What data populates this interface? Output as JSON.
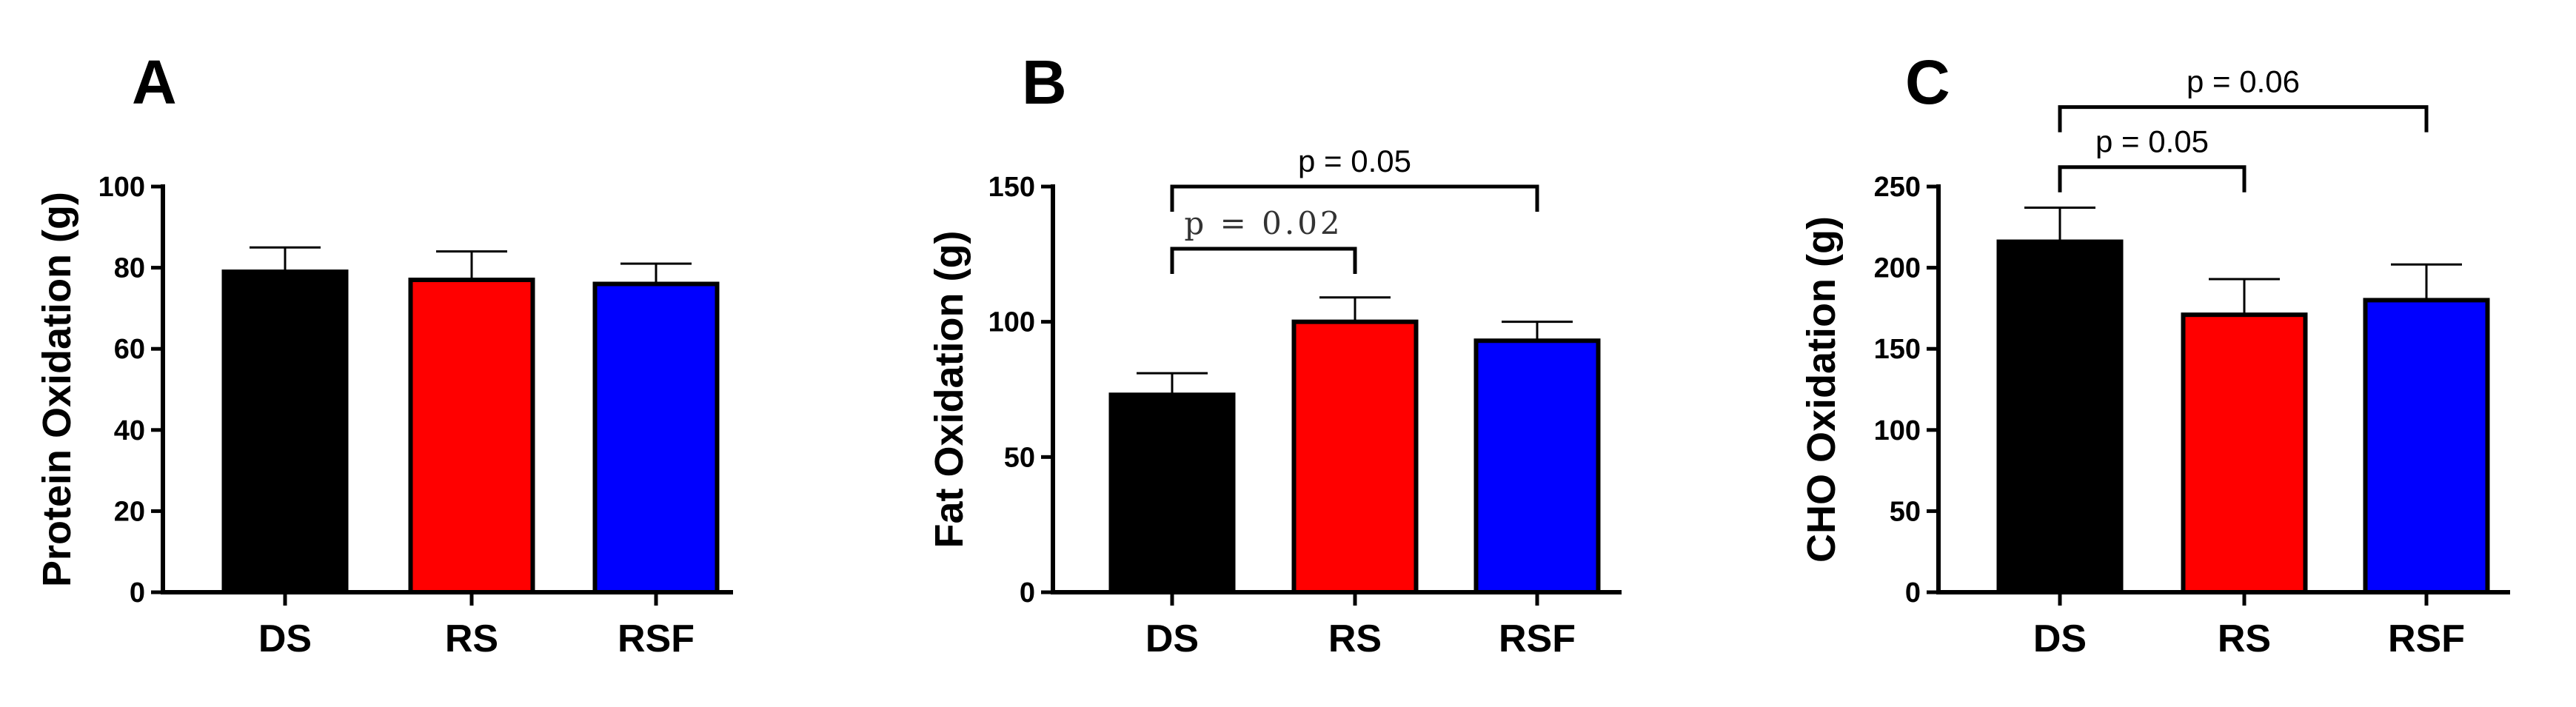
{
  "colors": {
    "DS": "#000000",
    "RS": "#ff0000",
    "RSF": "#0000ff"
  },
  "chart_data": [
    {
      "type": "bar",
      "panel": "A",
      "ylabel": "Protein Oxidation (g)",
      "categories": [
        "DS",
        "RS",
        "RSF"
      ],
      "values": [
        79,
        77,
        76
      ],
      "errors": [
        6,
        7,
        5
      ],
      "ylim": [
        0,
        100
      ],
      "yticks": [
        0,
        20,
        40,
        60,
        80,
        100
      ],
      "ytick_labels": [
        "0",
        "20",
        "40",
        "60",
        "80",
        "100"
      ],
      "comparisons": []
    },
    {
      "type": "bar",
      "panel": "B",
      "ylabel": "Fat Oxidation (g)",
      "categories": [
        "DS",
        "RS",
        "RSF"
      ],
      "values": [
        73,
        100,
        93
      ],
      "errors": [
        8,
        9,
        7
      ],
      "ylim": [
        0,
        150
      ],
      "yticks": [
        0,
        50,
        100,
        150
      ],
      "ytick_labels": [
        "0",
        "50",
        "100",
        "150"
      ],
      "comparisons": [
        {
          "from": 0,
          "to": 1,
          "label": "p = 0.02",
          "style": "serif",
          "y": 127
        },
        {
          "from": 0,
          "to": 2,
          "label": "p = 0.05",
          "style": "sans",
          "y": 150
        }
      ]
    },
    {
      "type": "bar",
      "panel": "C",
      "ylabel": "CHO Oxidation (g)",
      "categories": [
        "DS",
        "RS",
        "RSF"
      ],
      "values": [
        216,
        171,
        180
      ],
      "errors": [
        21,
        22,
        22
      ],
      "ylim": [
        0,
        250
      ],
      "yticks": [
        0,
        50,
        100,
        150,
        200,
        250
      ],
      "ytick_labels": [
        "0",
        "50",
        "100",
        "150",
        "200",
        "250"
      ],
      "comparisons": [
        {
          "from": 0,
          "to": 1,
          "label": "p = 0.05",
          "style": "sans",
          "y": 262
        },
        {
          "from": 0,
          "to": 2,
          "label": "p = 0.06",
          "style": "sans",
          "y": 299
        }
      ]
    }
  ]
}
